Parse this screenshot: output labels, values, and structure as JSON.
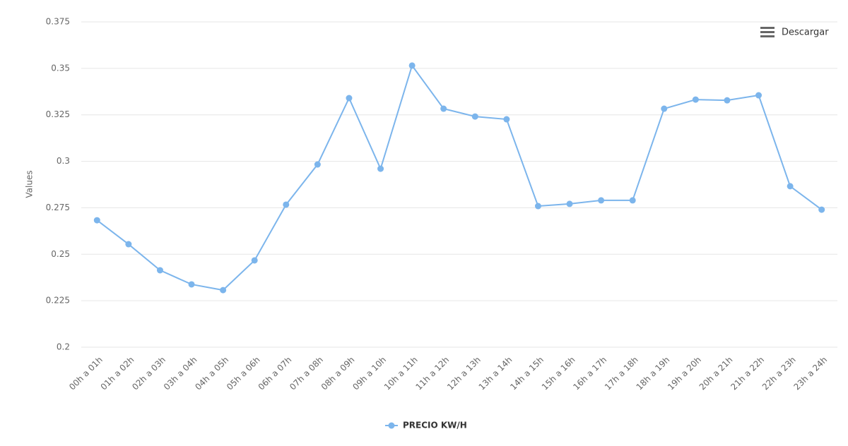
{
  "chart_data": {
    "type": "line",
    "categories": [
      "00h a 01h",
      "01h a 02h",
      "02h a 03h",
      "03h a 04h",
      "04h a 05h",
      "05h a 06h",
      "06h a 07h",
      "07h a 08h",
      "08h a 09h",
      "09h a 10h",
      "10h a 11h",
      "11h a 12h",
      "12h a 13h",
      "13h a 14h",
      "14h a 15h",
      "15h a 16h",
      "16h a 17h",
      "17h a 18h",
      "18h a 19h",
      "19h a 20h",
      "20h a 21h",
      "21h a 22h",
      "22h a 23h",
      "23h a 24h"
    ],
    "series": [
      {
        "name": "PRECIO KW/H",
        "color": "#7cb5ec",
        "values": [
          0.2683,
          0.2554,
          0.2414,
          0.2338,
          0.2307,
          0.2467,
          0.2767,
          0.2983,
          0.334,
          0.296,
          0.3515,
          0.3283,
          0.3241,
          0.3226,
          0.2759,
          0.2771,
          0.279,
          0.279,
          0.3283,
          0.3332,
          0.3328,
          0.3355,
          0.2866,
          0.274
        ]
      }
    ],
    "y_label": "Values",
    "ylim": [
      0.2,
      0.375
    ],
    "yticks": [
      0.2,
      0.225,
      0.25,
      0.275,
      0.3,
      0.325,
      0.35,
      0.375
    ],
    "grid": true,
    "legend": "bottom"
  },
  "menu": {
    "label": "Descargar"
  }
}
